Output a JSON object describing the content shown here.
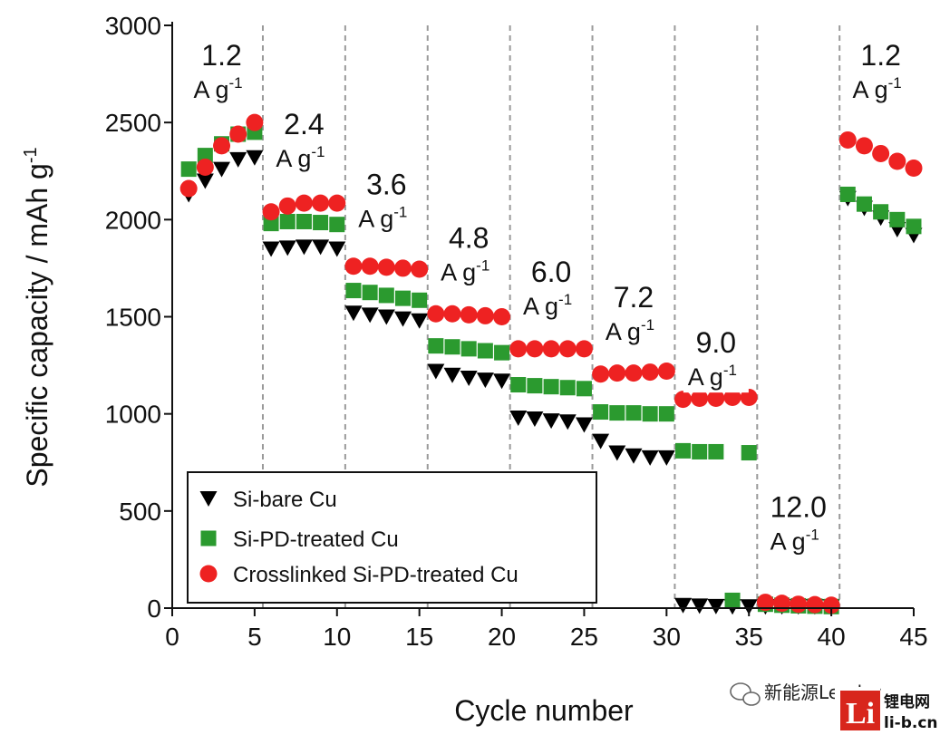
{
  "chart_data": {
    "type": "scatter",
    "xlabel": "Cycle number",
    "ylabel": "Specific capacity / mAh g",
    "ylabel_superscript": "-1",
    "xlim": [
      0,
      45
    ],
    "ylim": [
      0,
      3000
    ],
    "xticks": [
      "0",
      "5",
      "10",
      "15",
      "20",
      "25",
      "30",
      "35",
      "40",
      "45"
    ],
    "yticks": [
      "0",
      "500",
      "1000",
      "1500",
      "2000",
      "2500",
      "3000"
    ],
    "grid": "vertical dashed lines at rate changes",
    "dividers": [
      5.5,
      10.5,
      15.5,
      20.5,
      25.5,
      30.5,
      35.5,
      40.5
    ],
    "rate_labels": [
      {
        "value": "1.2",
        "unit": "A g",
        "sup": "-1",
        "cycle": 3,
        "capacity": 2795
      },
      {
        "value": "2.4",
        "unit": "A g",
        "sup": "-1",
        "cycle": 8,
        "capacity": 2440
      },
      {
        "value": "3.6",
        "unit": "A g",
        "sup": "-1",
        "cycle": 13,
        "capacity": 2130
      },
      {
        "value": "4.8",
        "unit": "A g",
        "sup": "-1",
        "cycle": 18,
        "capacity": 1855
      },
      {
        "value": "6.0",
        "unit": "A g",
        "sup": "-1",
        "cycle": 23,
        "capacity": 1680
      },
      {
        "value": "7.2",
        "unit": "A g",
        "sup": "-1",
        "cycle": 28,
        "capacity": 1550
      },
      {
        "value": "9.0",
        "unit": "A g",
        "sup": "-1",
        "cycle": 33,
        "capacity": 1315
      },
      {
        "value": "12.0",
        "unit": "A g",
        "sup": "-1",
        "cycle": 38,
        "capacity": 470
      },
      {
        "value": "1.2",
        "unit": "A g",
        "sup": "-1",
        "cycle": 43,
        "capacity": 2795
      }
    ],
    "series": [
      {
        "name": "Si-bare Cu",
        "marker": "triangle-down",
        "color": "#000000",
        "points": [
          [
            1,
            2130
          ],
          [
            2,
            2200
          ],
          [
            3,
            2260
          ],
          [
            4,
            2310
          ],
          [
            5,
            2320
          ],
          [
            6,
            1850
          ],
          [
            7,
            1855
          ],
          [
            8,
            1860
          ],
          [
            9,
            1860
          ],
          [
            10,
            1850
          ],
          [
            11,
            1520
          ],
          [
            12,
            1510
          ],
          [
            13,
            1500
          ],
          [
            14,
            1490
          ],
          [
            15,
            1480
          ],
          [
            16,
            1220
          ],
          [
            17,
            1200
          ],
          [
            18,
            1185
          ],
          [
            19,
            1175
          ],
          [
            20,
            1170
          ],
          [
            21,
            980
          ],
          [
            22,
            975
          ],
          [
            23,
            965
          ],
          [
            24,
            960
          ],
          [
            25,
            945
          ],
          [
            26,
            860
          ],
          [
            27,
            800
          ],
          [
            28,
            785
          ],
          [
            29,
            775
          ],
          [
            30,
            775
          ],
          [
            31,
            15
          ],
          [
            32,
            12
          ],
          [
            33,
            10
          ],
          [
            34,
            8
          ],
          [
            35,
            8
          ],
          [
            36,
            8
          ],
          [
            37,
            8
          ],
          [
            38,
            8
          ],
          [
            39,
            8
          ],
          [
            40,
            8
          ],
          [
            41,
            2110
          ],
          [
            42,
            2060
          ],
          [
            43,
            2010
          ],
          [
            44,
            1950
          ],
          [
            45,
            1920
          ]
        ]
      },
      {
        "name": "Si-PD-treated Cu",
        "marker": "square",
        "color": "#2b9a2f",
        "points": [
          [
            1,
            2260
          ],
          [
            2,
            2330
          ],
          [
            3,
            2390
          ],
          [
            4,
            2440
          ],
          [
            5,
            2450
          ],
          [
            6,
            1980
          ],
          [
            7,
            1990
          ],
          [
            8,
            1990
          ],
          [
            9,
            1985
          ],
          [
            10,
            1975
          ],
          [
            11,
            1635
          ],
          [
            12,
            1625
          ],
          [
            13,
            1610
          ],
          [
            14,
            1595
          ],
          [
            15,
            1585
          ],
          [
            16,
            1350
          ],
          [
            17,
            1345
          ],
          [
            18,
            1335
          ],
          [
            19,
            1325
          ],
          [
            20,
            1315
          ],
          [
            21,
            1150
          ],
          [
            22,
            1145
          ],
          [
            23,
            1140
          ],
          [
            24,
            1135
          ],
          [
            25,
            1130
          ],
          [
            26,
            1010
          ],
          [
            27,
            1005
          ],
          [
            28,
            1005
          ],
          [
            29,
            1000
          ],
          [
            30,
            1000
          ],
          [
            31,
            810
          ],
          [
            32,
            805
          ],
          [
            33,
            805
          ],
          [
            34,
            40
          ],
          [
            35,
            800
          ],
          [
            36,
            20
          ],
          [
            37,
            15
          ],
          [
            38,
            12
          ],
          [
            39,
            10
          ],
          [
            40,
            8
          ],
          [
            41,
            2130
          ],
          [
            42,
            2080
          ],
          [
            43,
            2040
          ],
          [
            44,
            2000
          ],
          [
            45,
            1965
          ]
        ]
      },
      {
        "name": "Crosslinked Si-PD-treated Cu",
        "marker": "circle",
        "color": "#ee2222",
        "points": [
          [
            1,
            2160
          ],
          [
            2,
            2270
          ],
          [
            3,
            2380
          ],
          [
            4,
            2440
          ],
          [
            5,
            2500
          ],
          [
            6,
            2040
          ],
          [
            7,
            2070
          ],
          [
            8,
            2085
          ],
          [
            9,
            2085
          ],
          [
            10,
            2085
          ],
          [
            11,
            1760
          ],
          [
            12,
            1760
          ],
          [
            13,
            1755
          ],
          [
            14,
            1750
          ],
          [
            15,
            1745
          ],
          [
            16,
            1515
          ],
          [
            17,
            1515
          ],
          [
            18,
            1510
          ],
          [
            19,
            1505
          ],
          [
            20,
            1500
          ],
          [
            21,
            1335
          ],
          [
            22,
            1335
          ],
          [
            23,
            1335
          ],
          [
            24,
            1335
          ],
          [
            25,
            1335
          ],
          [
            26,
            1205
          ],
          [
            27,
            1210
          ],
          [
            28,
            1210
          ],
          [
            29,
            1215
          ],
          [
            30,
            1220
          ],
          [
            31,
            1075
          ],
          [
            32,
            1080
          ],
          [
            33,
            1080
          ],
          [
            34,
            1085
          ],
          [
            35,
            1085
          ],
          [
            36,
            30
          ],
          [
            37,
            25
          ],
          [
            38,
            20
          ],
          [
            39,
            18
          ],
          [
            40,
            15
          ],
          [
            41,
            2410
          ],
          [
            42,
            2380
          ],
          [
            43,
            2340
          ],
          [
            44,
            2300
          ],
          [
            45,
            2265
          ]
        ]
      }
    ],
    "legend": {
      "placement": "bottom-left",
      "entries": [
        "Si-bare Cu",
        "Si-PD-treated Cu",
        "Crosslinked Si-PD-treated Cu"
      ]
    }
  },
  "watermark": {
    "wechat_text": "新能源Leader",
    "logo_letters": "Li",
    "site_name": "锂电网",
    "site_url": "li-b.cn",
    "logo_color": "#d8261c"
  }
}
